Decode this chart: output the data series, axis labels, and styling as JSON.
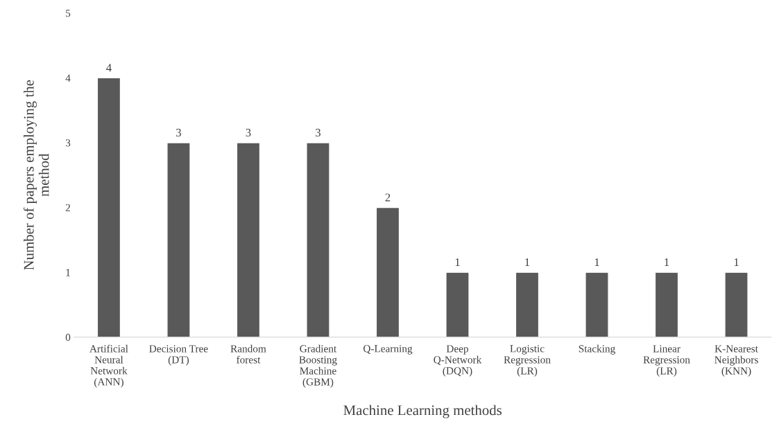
{
  "chart_data": {
    "type": "bar",
    "xlabel": "Machine Learning methods",
    "ylabel": "Number of papers employing the\nmethod",
    "categories": [
      "Artificial\nNeural\nNetwork\n(ANN)",
      "Decision Tree\n(DT)",
      "Random\nforest",
      "Gradient\nBoosting\nMachine\n(GBM)",
      "Q-Learning",
      "Deep\nQ-Network\n(DQN)",
      "Logistic\nRegression\n(LR)",
      "Stacking",
      "Linear\nRegression\n(LR)",
      "K-Nearest\nNeighbors\n(KNN)"
    ],
    "values": [
      4,
      3,
      3,
      3,
      2,
      1,
      1,
      1,
      1,
      1
    ],
    "color": "#595959",
    "ylim": [
      0,
      5
    ],
    "yticks": [
      0,
      1,
      2,
      3,
      4,
      5
    ],
    "data_labels": true,
    "grid": false,
    "legend": false
  }
}
